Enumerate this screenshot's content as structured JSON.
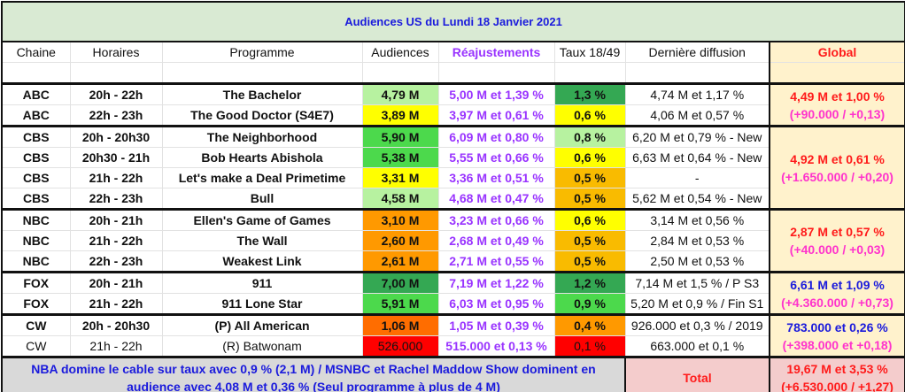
{
  "title": "Audiences US du Lundi 18 Janvier 2021",
  "headers": [
    "Chaine",
    "Horaires",
    "Programme",
    "Audiences",
    "Réajustements",
    "Taux 18/49",
    "Dernière diffusion",
    "Global"
  ],
  "colors": {
    "light_green": "#b7f2a0",
    "yellow": "#ffff00",
    "green": "#4cd94c",
    "dark_green": "#34a853",
    "orange": "#ff9900",
    "amber": "#f9bb00",
    "dark_orange": "#ff6d00",
    "red": "#ff0000",
    "global_red": "#ff1a1a",
    "global_blue": "#1a1adc",
    "global_magenta": "#ff33cc"
  },
  "groups": [
    {
      "global_line1": "4,49 M et 1,00 %",
      "global_line2": "(+90.000 / +0,13)",
      "line1_color": "#ff1a1a",
      "rows": [
        {
          "channel": "ABC",
          "time": "20h - 22h",
          "program": "The Bachelor",
          "audience": "4,79 M",
          "aud_color": "#b7f2a0",
          "reaj": "5,00 M et 1,39 %",
          "taux": "1,3 %",
          "taux_color": "#34a853",
          "last": "4,74 M et 1,17 %",
          "bold": true
        },
        {
          "channel": "ABC",
          "time": "22h - 23h",
          "program": "The Good Doctor (S4E7)",
          "audience": "3,89 M",
          "aud_color": "#ffff00",
          "reaj": "3,97 M et 0,61 %",
          "taux": "0,6 %",
          "taux_color": "#ffff00",
          "last": "4,06 M et 0,57 %",
          "bold": true
        }
      ]
    },
    {
      "global_line1": "4,92 M et 0,61 %",
      "global_line2": "(+1.650.000 / +0,20)",
      "line1_color": "#ff1a1a",
      "rows": [
        {
          "channel": "CBS",
          "time": "20h - 20h30",
          "program": "The Neighborhood",
          "audience": "5,90 M",
          "aud_color": "#4cd94c",
          "reaj": "6,09 M et 0,80 %",
          "taux": "0,8 %",
          "taux_color": "#b7f2a0",
          "last": "6,20 M et 0,79 % - New",
          "bold": true
        },
        {
          "channel": "CBS",
          "time": "20h30 - 21h",
          "program": "Bob Hearts Abishola",
          "audience": "5,38 M",
          "aud_color": "#4cd94c",
          "reaj": "5,55 M et 0,66 %",
          "taux": "0,6 %",
          "taux_color": "#ffff00",
          "last": "6,63 M et 0,64 % - New",
          "bold": true
        },
        {
          "channel": "CBS",
          "time": "21h - 22h",
          "program": "Let's make a Deal Primetime",
          "audience": "3,31 M",
          "aud_color": "#ffff00",
          "reaj": "3,36 M et 0,51 %",
          "taux": "0,5 %",
          "taux_color": "#f9bb00",
          "last": "-",
          "bold": true
        },
        {
          "channel": "CBS",
          "time": "22h - 23h",
          "program": "Bull",
          "audience": "4,58 M",
          "aud_color": "#b7f2a0",
          "reaj": "4,68 M et 0,47 %",
          "taux": "0,5 %",
          "taux_color": "#f9bb00",
          "last": "5,62 M et 0,54 % - New",
          "bold": true
        }
      ]
    },
    {
      "global_line1": "2,87 M et 0,57 %",
      "global_line2": "(+40.000 / +0,03)",
      "line1_color": "#ff1a1a",
      "rows": [
        {
          "channel": "NBC",
          "time": "20h - 21h",
          "program": "Ellen's Game of Games",
          "audience": "3,10 M",
          "aud_color": "#ff9900",
          "reaj": "3,23 M et 0,66 %",
          "taux": "0,6 %",
          "taux_color": "#ffff00",
          "last": "3,14 M et 0,56 %",
          "bold": true
        },
        {
          "channel": "NBC",
          "time": "21h - 22h",
          "program": "The Wall",
          "audience": "2,60 M",
          "aud_color": "#ff9900",
          "reaj": "2,68 M et 0,49 %",
          "taux": "0,5 %",
          "taux_color": "#f9bb00",
          "last": "2,84 M et 0,53 %",
          "bold": true
        },
        {
          "channel": "NBC",
          "time": "22h - 23h",
          "program": "Weakest Link",
          "audience": "2,61 M",
          "aud_color": "#ff9900",
          "reaj": "2,71 M et 0,55 %",
          "taux": "0,5 %",
          "taux_color": "#f9bb00",
          "last": "2,50 M et 0,53 %",
          "bold": true
        }
      ]
    },
    {
      "global_line1": "6,61 M et 1,09 %",
      "global_line2": "(+4.360.000 / +0,73)",
      "line1_color": "#1a1adc",
      "rows": [
        {
          "channel": "FOX",
          "time": "20h - 21h",
          "program": "911",
          "audience": "7,00 M",
          "aud_color": "#34a853",
          "reaj": "7,19 M et 1,22 %",
          "taux": "1,2 %",
          "taux_color": "#34a853",
          "last": "7,14 M et 1,5 % / P S3",
          "bold": true
        },
        {
          "channel": "FOX",
          "time": "21h - 22h",
          "program": "911 Lone Star",
          "audience": "5,91 M",
          "aud_color": "#4cd94c",
          "reaj": "6,03 M et 0,95 %",
          "taux": "0,9 %",
          "taux_color": "#4cd94c",
          "last": "5,20 M et 0,9 % / Fin S1",
          "bold": true
        }
      ]
    },
    {
      "global_line1": "783.000 et 0,26 %",
      "global_line2": "(+398.000 et +0,18)",
      "line1_color": "#1a1adc",
      "rows": [
        {
          "channel": "CW",
          "time": "20h - 20h30",
          "program": "(P) All American",
          "audience": "1,06 M",
          "aud_color": "#ff6d00",
          "reaj": "1,05 M et 0,39 %",
          "taux": "0,4 %",
          "taux_color": "#ff9900",
          "last": "926.000 et 0,3 % / 2019",
          "bold": true
        },
        {
          "channel": "CW",
          "time": "21h - 22h",
          "program": "(R) Batwonam",
          "audience": "526.000",
          "aud_color": "#ff0000",
          "reaj": "515.000 et 0,13 %",
          "taux": "0,1 %",
          "taux_color": "#ff0000",
          "last": "663.000 et 0,1 %",
          "bold": false
        }
      ]
    }
  ],
  "footer": {
    "note": "NBA domine le cable sur taux avec 0,9 % (2,1 M) / MSNBC et Rachel Maddow Show dominent en audience avec 4,08 M et 0,36 % (Seul programme à plus de 4 M)",
    "total_label": "Total",
    "total_line1": "19,67 M et 3,53 %",
    "total_line2": "(+6.530.000 / +1,27)"
  }
}
